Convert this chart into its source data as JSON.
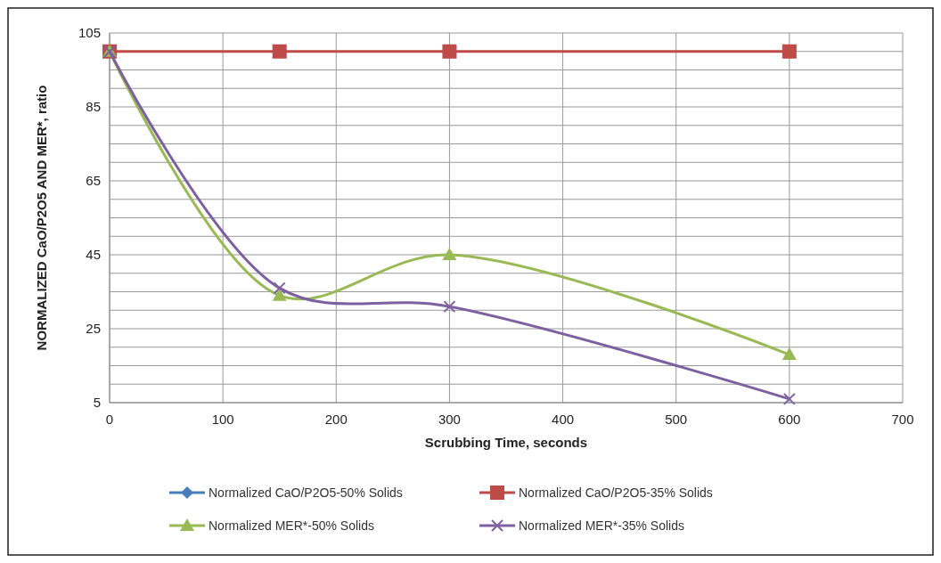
{
  "chart_data": {
    "type": "line",
    "xlabel": "Scrubbing Time, seconds",
    "ylabel": "NORMALIZED CaO/P2O5 AND MER*, ratio",
    "x": [
      0,
      150,
      300,
      600
    ],
    "series": [
      {
        "name": "Normalized CaO/P2O5-50% Solids",
        "color": "#4a7ebb",
        "marker": "diamond",
        "values": [
          null,
          null,
          null,
          null
        ]
      },
      {
        "name": "Normalized CaO/P2O5-35% Solids",
        "color": "#be4b48",
        "marker": "square",
        "values": [
          100,
          100,
          100,
          100
        ]
      },
      {
        "name": "Normalized MER*-50% Solids",
        "color": "#98b954",
        "marker": "triangle",
        "values": [
          100,
          34,
          45,
          18
        ]
      },
      {
        "name": "Normalized MER*-35% Solids",
        "color": "#7d60a0",
        "marker": "cross",
        "values": [
          100,
          36,
          31,
          6
        ]
      }
    ],
    "xlim": [
      0,
      700
    ],
    "xticks": [
      0,
      100,
      200,
      300,
      400,
      500,
      600,
      700
    ],
    "ylim": [
      5,
      105
    ],
    "yticks": [
      5,
      {
        "value": 10,
        "label": null
      },
      {
        "value": 15,
        "label": null
      },
      {
        "value": 20,
        "label": null
      },
      25,
      {
        "value": 30,
        "label": null
      },
      {
        "value": 35,
        "label": null
      },
      {
        "value": 40,
        "label": null
      },
      45,
      {
        "value": 50,
        "label": null
      },
      {
        "value": 55,
        "label": null
      },
      {
        "value": 60,
        "label": null
      },
      65,
      {
        "value": 70,
        "label": null
      },
      {
        "value": 75,
        "label": null
      },
      {
        "value": 80,
        "label": null
      },
      85,
      {
        "value": 90,
        "label": null
      },
      {
        "value": 95,
        "label": null
      },
      {
        "value": 100,
        "label": null
      },
      105
    ],
    "grid": true,
    "legend": "bottom",
    "line_style": "solid"
  }
}
